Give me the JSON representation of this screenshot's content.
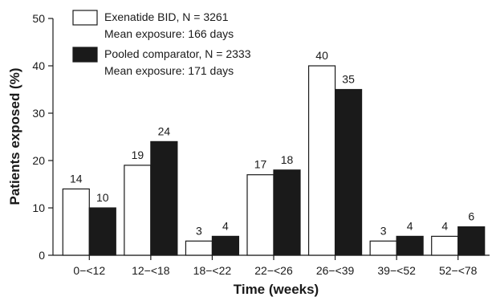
{
  "chart_data": {
    "type": "bar",
    "xlabel": "Time (weeks)",
    "ylabel": "Patients exposed (%)",
    "ylim": [
      0,
      50
    ],
    "yticks": [
      0,
      10,
      20,
      30,
      40,
      50
    ],
    "grid": false,
    "legend_position": "top-left",
    "categories": [
      "0−<12",
      "12−<18",
      "18−<22",
      "22−<26",
      "26−<39",
      "39−<52",
      "52−<78"
    ],
    "series": [
      {
        "name": "Exenatide BID, N = 3261",
        "note": "Mean exposure: 166 days",
        "color": "#ffffff",
        "stroke": "#1a1a1a",
        "values": [
          14,
          19,
          3,
          17,
          40,
          3,
          4
        ]
      },
      {
        "name": "Pooled comparator, N = 2333",
        "note": "Mean exposure: 171 days",
        "color": "#1a1a1a",
        "stroke": "#1a1a1a",
        "values": [
          10,
          24,
          4,
          18,
          35,
          4,
          6
        ]
      }
    ]
  }
}
